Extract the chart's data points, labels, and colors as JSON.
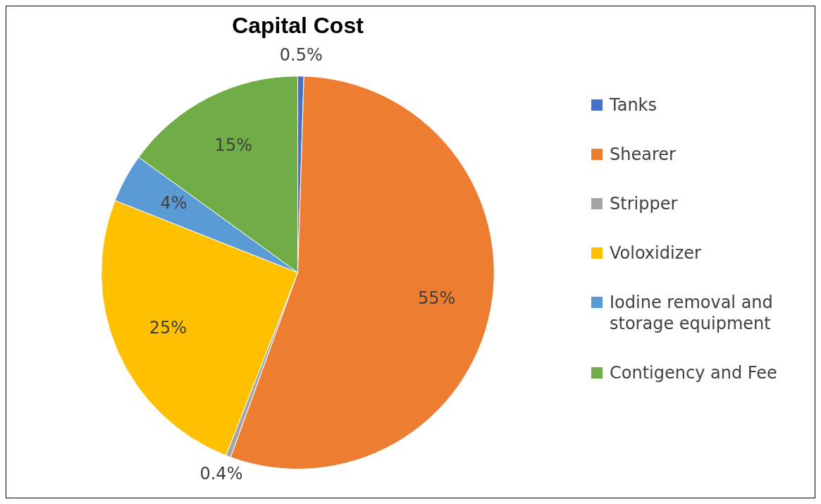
{
  "chart_data": {
    "type": "pie",
    "title": "Capital Cost",
    "categories": [
      "Tanks",
      "Shearer",
      "Stripper",
      "Voloxidizer",
      "Iodine removal and storage equipment",
      "Contigency and Fee"
    ],
    "values": [
      0.5,
      55,
      0.4,
      25,
      4,
      15
    ],
    "value_labels": [
      "0.5%",
      "55%",
      "0.4%",
      "25%",
      "4%",
      "15%"
    ],
    "colors": [
      "#4472c4",
      "#ed7d31",
      "#a5a5a5",
      "#ffc000",
      "#5b9bd5",
      "#70ad47"
    ],
    "legend": "right"
  }
}
